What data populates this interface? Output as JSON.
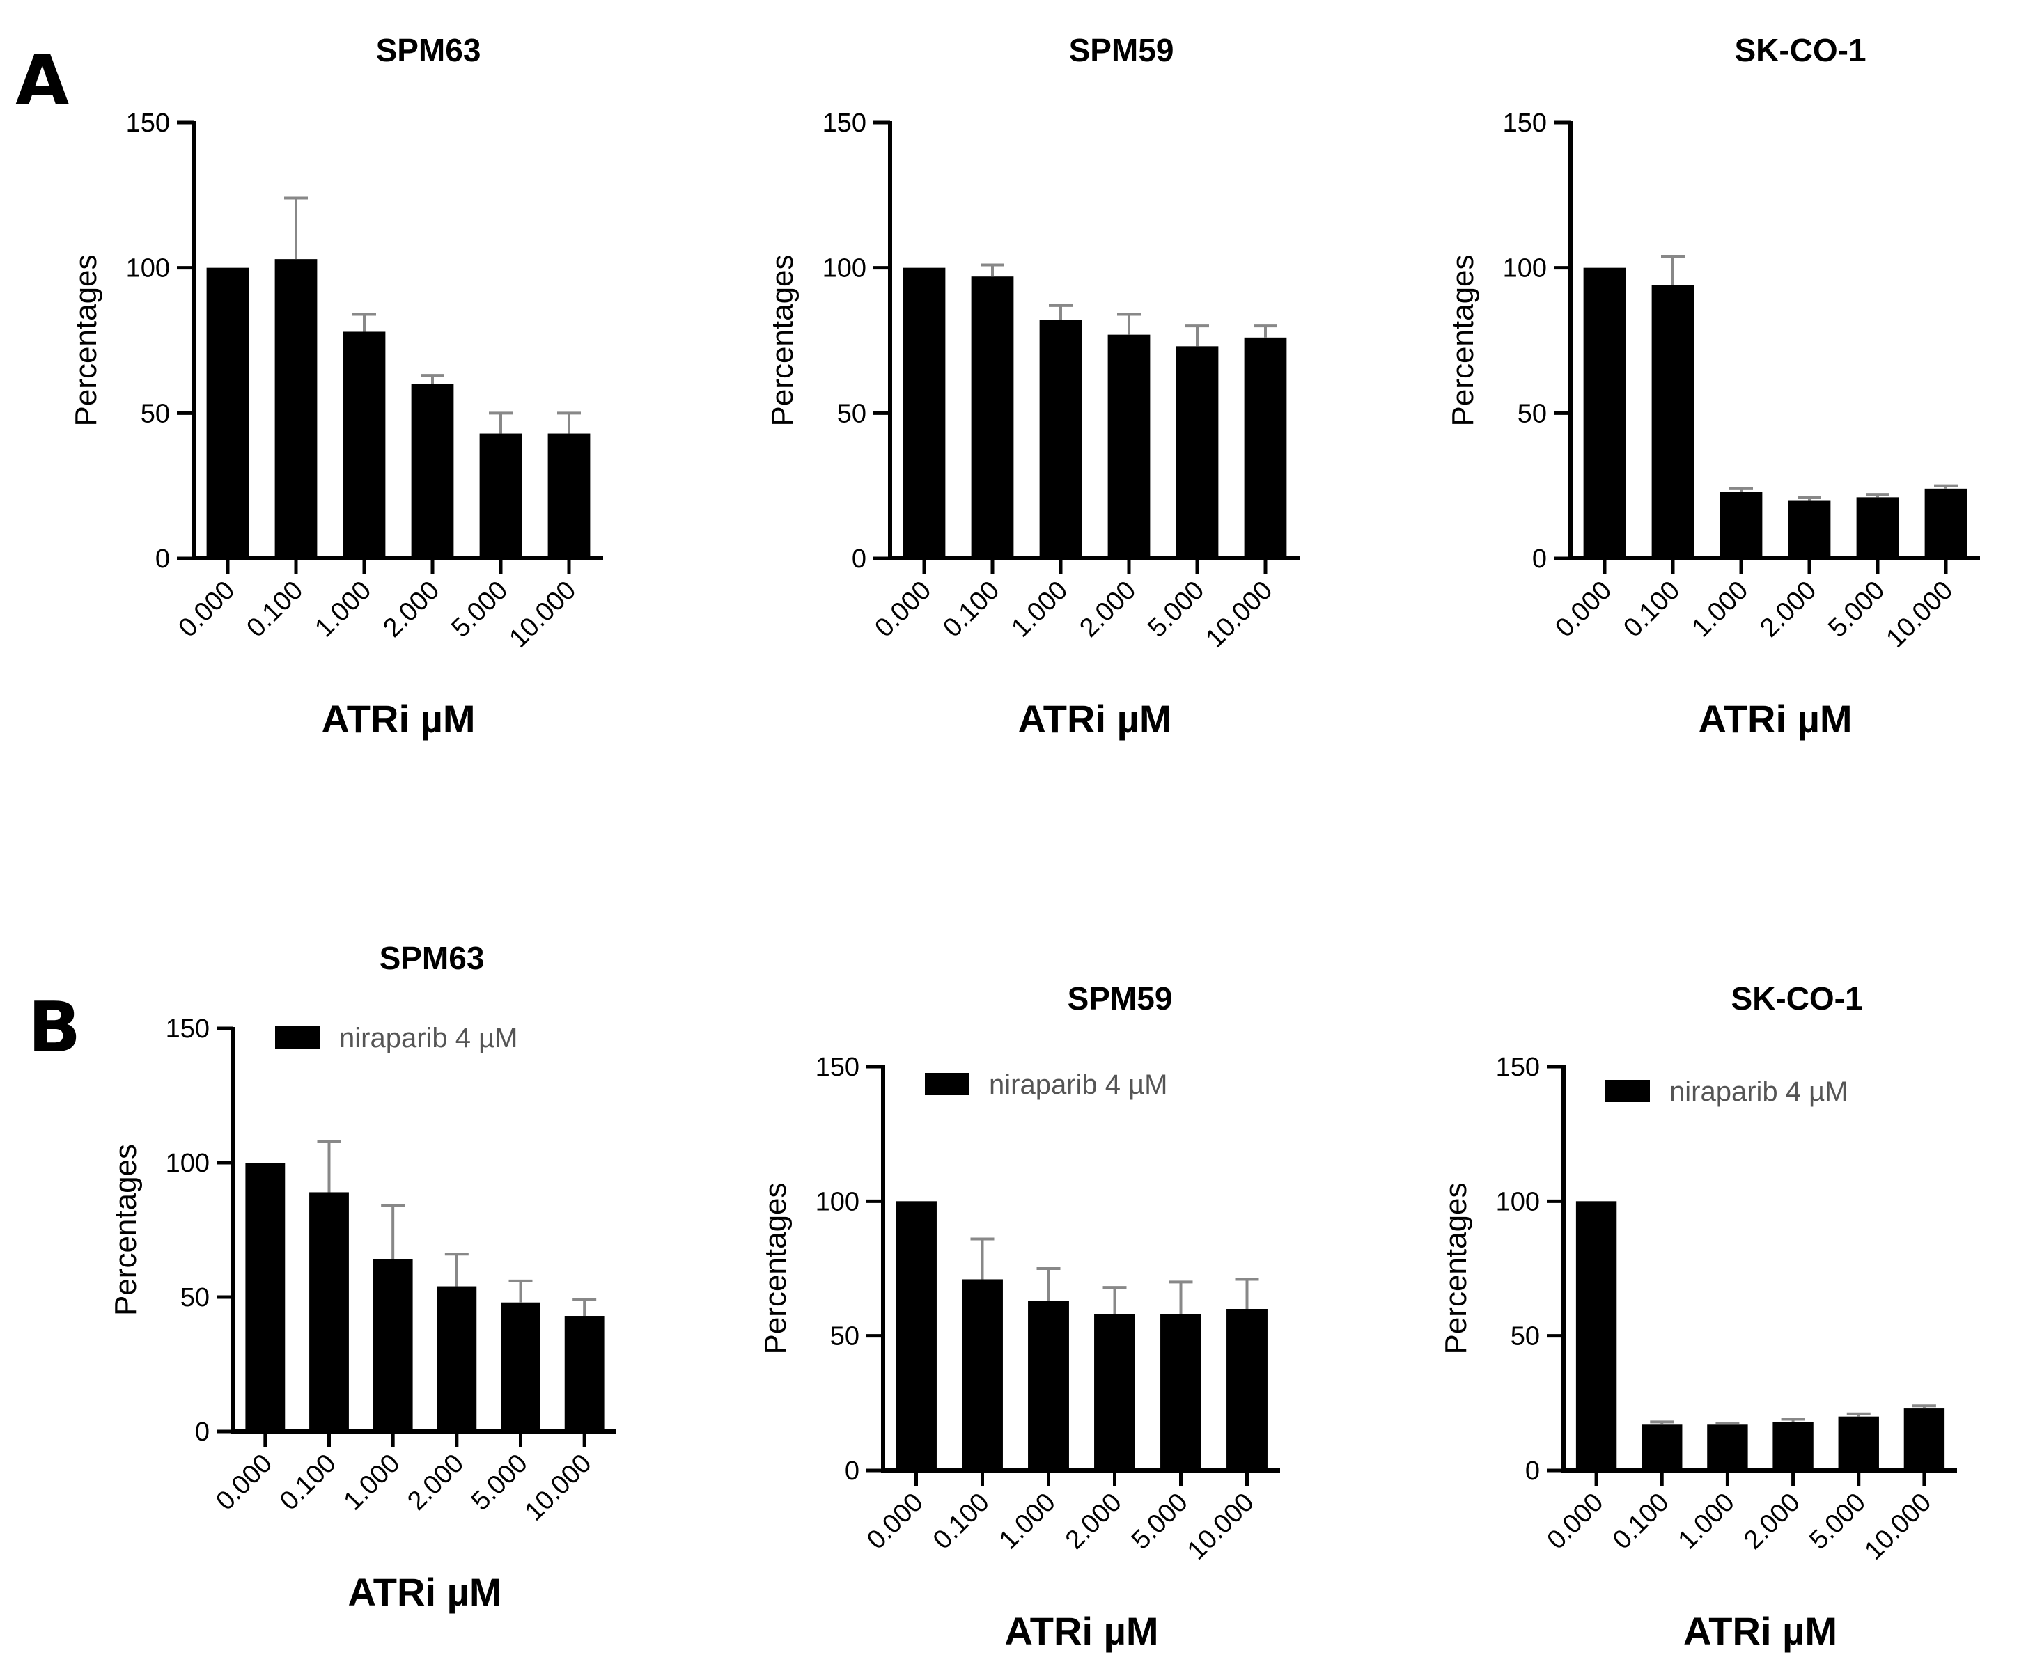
{
  "panels": [
    {
      "letter": "A"
    },
    {
      "letter": "B"
    }
  ],
  "chart_data": [
    {
      "type": "bar",
      "panel": "A",
      "title": "SPM63",
      "xlabel": "ATRi µM",
      "ylabel": "Percentages",
      "ylim": [
        0,
        150
      ],
      "yticks": [
        "0",
        "50",
        "100",
        "150"
      ],
      "categories": [
        "0.000",
        "0.100",
        "1.000",
        "2.000",
        "5.000",
        "10.000"
      ],
      "values": [
        100,
        103,
        78,
        60,
        43,
        43
      ],
      "errors": [
        0,
        21,
        6,
        3,
        7,
        7
      ],
      "legend": null,
      "colors": {
        "bar": "#000000",
        "error": "#888888"
      }
    },
    {
      "type": "bar",
      "panel": "A",
      "title": "SPM59",
      "xlabel": "ATRi µM",
      "ylabel": "Percentages",
      "ylim": [
        0,
        150
      ],
      "yticks": [
        "0",
        "50",
        "100",
        "150"
      ],
      "categories": [
        "0.000",
        "0.100",
        "1.000",
        "2.000",
        "5.000",
        "10.000"
      ],
      "values": [
        100,
        97,
        82,
        77,
        73,
        76
      ],
      "errors": [
        0,
        4,
        5,
        7,
        7,
        4
      ],
      "legend": null,
      "colors": {
        "bar": "#000000",
        "error": "#888888"
      }
    },
    {
      "type": "bar",
      "panel": "A",
      "title": "SK-CO-1",
      "xlabel": "ATRi µM",
      "ylabel": "Percentages",
      "ylim": [
        0,
        150
      ],
      "yticks": [
        "0",
        "50",
        "100",
        "150"
      ],
      "categories": [
        "0.000",
        "0.100",
        "1.000",
        "2.000",
        "5.000",
        "10.000"
      ],
      "values": [
        100,
        94,
        23,
        20,
        21,
        24
      ],
      "errors": [
        0,
        10,
        1,
        1,
        1,
        1
      ],
      "legend": null,
      "colors": {
        "bar": "#000000",
        "error": "#888888"
      }
    },
    {
      "type": "bar",
      "panel": "B",
      "title": "SPM63",
      "xlabel": "ATRi µM",
      "ylabel": "Percentages",
      "ylim": [
        0,
        150
      ],
      "yticks": [
        "0",
        "50",
        "100",
        "150"
      ],
      "categories": [
        "0.000",
        "0.100",
        "1.000",
        "2.000",
        "5.000",
        "10.000"
      ],
      "values": [
        100,
        89,
        64,
        54,
        48,
        43
      ],
      "errors": [
        0,
        19,
        20,
        12,
        8,
        6
      ],
      "legend": "niraparib 4 µM",
      "colors": {
        "bar": "#000000",
        "error": "#888888"
      }
    },
    {
      "type": "bar",
      "panel": "B",
      "title": "SPM59",
      "xlabel": "ATRi µM",
      "ylabel": "Percentages",
      "ylim": [
        0,
        150
      ],
      "yticks": [
        "0",
        "50",
        "100",
        "150"
      ],
      "categories": [
        "0.000",
        "0.100",
        "1.000",
        "2.000",
        "5.000",
        "10.000"
      ],
      "values": [
        100,
        71,
        63,
        58,
        58,
        60
      ],
      "errors": [
        0,
        15,
        12,
        10,
        12,
        11
      ],
      "legend": "niraparib 4 µM",
      "colors": {
        "bar": "#000000",
        "error": "#888888"
      }
    },
    {
      "type": "bar",
      "panel": "B",
      "title": "SK-CO-1",
      "xlabel": "ATRi µM",
      "ylabel": "Percentages",
      "ylim": [
        0,
        150
      ],
      "yticks": [
        "0",
        "50",
        "100",
        "150"
      ],
      "categories": [
        "0.000",
        "0.100",
        "1.000",
        "2.000",
        "5.000",
        "10.000"
      ],
      "values": [
        100,
        17,
        17,
        18,
        20,
        23
      ],
      "errors": [
        0,
        1,
        0.5,
        1,
        1,
        1
      ],
      "legend": "niraparib 4 µM",
      "colors": {
        "bar": "#000000",
        "error": "#888888"
      }
    }
  ]
}
